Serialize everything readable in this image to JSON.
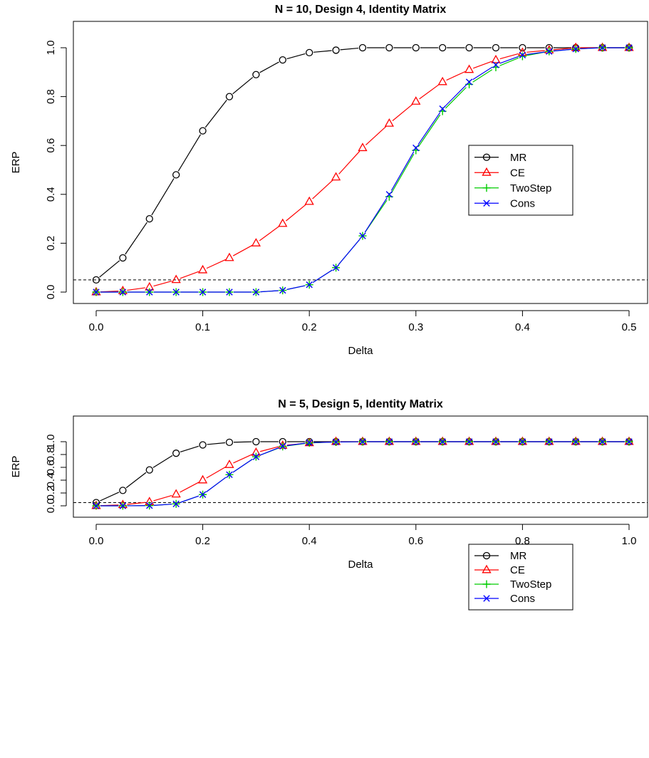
{
  "chart_data": [
    {
      "type": "line",
      "title": "N = 10, Design 4, Identity Matrix",
      "xlabel": "Delta",
      "ylabel": "ERP",
      "xlim": [
        0,
        0.5
      ],
      "ylim": [
        0,
        1
      ],
      "xticks": [
        "0.0",
        "0.1",
        "0.2",
        "0.3",
        "0.4",
        "0.5"
      ],
      "yticks": [
        "0.0",
        "0.2",
        "0.4",
        "0.6",
        "0.8",
        "1.0"
      ],
      "reference_line": 0.05,
      "legend_position": "center-right",
      "x": [
        0,
        0.025,
        0.05,
        0.075,
        0.1,
        0.125,
        0.15,
        0.175,
        0.2,
        0.225,
        0.25,
        0.275,
        0.3,
        0.325,
        0.35,
        0.375,
        0.4,
        0.425,
        0.45,
        0.475,
        0.5
      ],
      "series": [
        {
          "name": "MR",
          "color": "#000000",
          "marker": "circle",
          "values": [
            0.05,
            0.14,
            0.3,
            0.48,
            0.66,
            0.8,
            0.89,
            0.95,
            0.98,
            0.99,
            1.0,
            1.0,
            1.0,
            1.0,
            1.0,
            1.0,
            1.0,
            1.0,
            1.0,
            1.0,
            1.0
          ]
        },
        {
          "name": "CE",
          "color": "#ff0000",
          "marker": "triangle",
          "values": [
            0.0,
            0.005,
            0.02,
            0.05,
            0.09,
            0.14,
            0.2,
            0.28,
            0.37,
            0.47,
            0.59,
            0.69,
            0.78,
            0.86,
            0.91,
            0.95,
            0.98,
            0.99,
            1.0,
            1.0,
            1.0
          ]
        },
        {
          "name": "TwoStep",
          "color": "#00cc00",
          "marker": "plus",
          "values": [
            0.0,
            0.0,
            0.0,
            0.0,
            0.0,
            0.0,
            0.0,
            0.007,
            0.03,
            0.1,
            0.23,
            0.39,
            0.58,
            0.74,
            0.85,
            0.92,
            0.965,
            0.985,
            0.995,
            1.0,
            1.0
          ]
        },
        {
          "name": "Cons",
          "color": "#0000ff",
          "marker": "x",
          "values": [
            0.0,
            0.0,
            0.0,
            0.0,
            0.0,
            0.0,
            0.0,
            0.007,
            0.03,
            0.1,
            0.23,
            0.4,
            0.59,
            0.75,
            0.86,
            0.93,
            0.97,
            0.985,
            0.995,
            1.0,
            1.0
          ]
        }
      ]
    },
    {
      "type": "line",
      "title": "N = 5, Design 5, Identity Matrix",
      "xlabel": "Delta",
      "ylabel": "ERP",
      "xlim": [
        0,
        1
      ],
      "ylim": [
        0,
        1
      ],
      "xticks": [
        "0.0",
        "0.2",
        "0.4",
        "0.6",
        "0.8",
        "1.0"
      ],
      "yticks": [
        "0.0",
        "0.2",
        "0.4",
        "0.6",
        "0.8",
        "1.0"
      ],
      "reference_line": 0.05,
      "legend_position": "center-right",
      "x": [
        0,
        0.05,
        0.1,
        0.15,
        0.2,
        0.25,
        0.3,
        0.35,
        0.4,
        0.45,
        0.5,
        0.55,
        0.6,
        0.65,
        0.7,
        0.75,
        0.8,
        0.85,
        0.9,
        0.95,
        1.0
      ],
      "series": [
        {
          "name": "MR",
          "color": "#000000",
          "marker": "circle",
          "values": [
            0.05,
            0.24,
            0.56,
            0.82,
            0.95,
            0.99,
            1.0,
            1.0,
            1.0,
            1.0,
            1.0,
            1.0,
            1.0,
            1.0,
            1.0,
            1.0,
            1.0,
            1.0,
            1.0,
            1.0,
            1.0
          ]
        },
        {
          "name": "CE",
          "color": "#ff0000",
          "marker": "triangle",
          "values": [
            0.0,
            0.015,
            0.06,
            0.18,
            0.4,
            0.64,
            0.83,
            0.94,
            0.98,
            1.0,
            1.0,
            1.0,
            1.0,
            1.0,
            1.0,
            1.0,
            1.0,
            1.0,
            1.0,
            1.0,
            1.0
          ]
        },
        {
          "name": "TwoStep",
          "color": "#00cc00",
          "marker": "plus",
          "values": [
            0.0,
            0.0,
            0.003,
            0.03,
            0.175,
            0.485,
            0.765,
            0.925,
            0.98,
            0.995,
            1.0,
            1.0,
            1.0,
            1.0,
            1.0,
            1.0,
            1.0,
            1.0,
            1.0,
            1.0,
            1.0
          ]
        },
        {
          "name": "Cons",
          "color": "#0000ff",
          "marker": "x",
          "values": [
            0.0,
            0.0,
            0.003,
            0.03,
            0.175,
            0.485,
            0.765,
            0.93,
            0.985,
            0.995,
            1.0,
            1.0,
            1.0,
            1.0,
            1.0,
            1.0,
            1.0,
            1.0,
            1.0,
            1.0,
            1.0
          ]
        }
      ]
    }
  ]
}
